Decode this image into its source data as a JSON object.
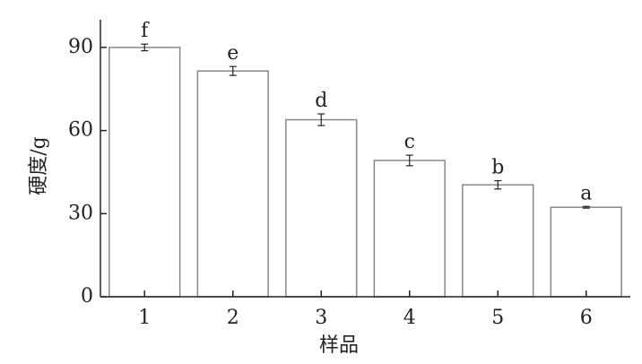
{
  "chart_data": {
    "type": "bar",
    "categories": [
      "1",
      "2",
      "3",
      "4",
      "5",
      "6"
    ],
    "values": [
      90,
      81.5,
      63.9,
      49.2,
      40.4,
      32.3
    ],
    "errors": [
      1.2,
      1.6,
      2.1,
      1.9,
      1.5,
      0.3
    ],
    "significance_letters": [
      "f",
      "e",
      "d",
      "c",
      "b",
      "a"
    ],
    "color": "#ffffff",
    "edge_color": "#888888",
    "xlabel": "样品",
    "ylabel": "硬度/g",
    "ylim": [
      0,
      100
    ],
    "yticks": [
      0,
      30,
      60,
      90
    ],
    "grid": false
  }
}
